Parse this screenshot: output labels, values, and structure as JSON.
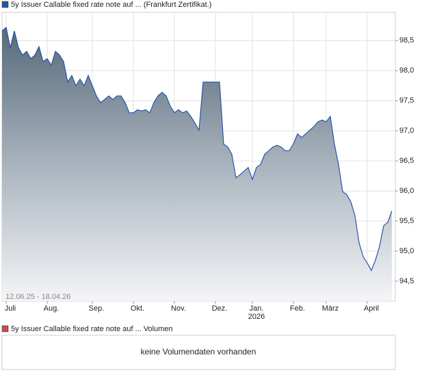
{
  "chart_data": {
    "type": "area",
    "date_range": "12.06.25 - 18.04.26",
    "categories": [
      null,
      "Juli",
      null,
      null,
      null,
      null,
      null,
      null,
      null,
      null,
      null,
      "Aug.",
      null,
      null,
      null,
      null,
      null,
      null,
      null,
      null,
      null,
      null,
      "Sep.",
      null,
      null,
      null,
      null,
      null,
      null,
      null,
      null,
      null,
      "Okt.",
      null,
      null,
      null,
      null,
      null,
      null,
      null,
      null,
      null,
      "Nov.",
      null,
      null,
      null,
      null,
      null,
      null,
      null,
      null,
      null,
      "Dez.",
      null,
      null,
      null,
      null,
      null,
      null,
      null,
      null,
      "Jan.",
      null,
      null,
      null,
      null,
      null,
      null,
      null,
      null,
      null,
      "Feb.",
      null,
      null,
      null,
      null,
      null,
      null,
      null,
      "März",
      null,
      null,
      null,
      null,
      null,
      null,
      null,
      null,
      null,
      "April",
      null,
      null,
      null,
      null,
      null,
      null
    ],
    "year_label": "2026",
    "series": [
      {
        "name": "5y Issuer Callable fixed rate note auf ... (Frankfurt Zertifikat.)",
        "color": "#2655a8",
        "values": [
          98.66,
          98.72,
          98.38,
          98.66,
          98.38,
          98.26,
          98.32,
          98.2,
          98.26,
          98.4,
          98.15,
          98.2,
          98.09,
          98.32,
          98.26,
          98.15,
          97.81,
          97.92,
          97.75,
          97.86,
          97.75,
          97.92,
          97.75,
          97.58,
          97.47,
          97.52,
          97.58,
          97.52,
          97.58,
          97.58,
          97.47,
          97.3,
          97.3,
          97.35,
          97.33,
          97.35,
          97.3,
          97.47,
          97.58,
          97.64,
          97.58,
          97.41,
          97.3,
          97.35,
          97.3,
          97.33,
          97.24,
          97.13,
          97.01,
          97.81,
          97.81,
          97.81,
          97.81,
          97.81,
          96.78,
          96.73,
          96.61,
          96.22,
          96.27,
          96.33,
          96.39,
          96.19,
          96.39,
          96.44,
          96.61,
          96.67,
          96.73,
          96.76,
          96.73,
          96.67,
          96.67,
          96.78,
          96.95,
          96.89,
          96.95,
          97.01,
          97.07,
          97.15,
          97.18,
          97.15,
          97.24,
          96.78,
          96.44,
          95.99,
          95.94,
          95.82,
          95.59,
          95.14,
          94.91,
          94.8,
          94.68,
          94.85,
          95.08,
          95.42,
          95.48,
          95.67
        ]
      }
    ],
    "ylim": [
      94.17,
      98.97
    ],
    "yticks": [
      {
        "value": 94.5,
        "label": "94,5"
      },
      {
        "value": 95,
        "label": "95,0"
      },
      {
        "value": 95.5,
        "label": "95,5"
      },
      {
        "value": 96,
        "label": "96,0"
      },
      {
        "value": 96.5,
        "label": "96,5"
      },
      {
        "value": 97,
        "label": "97,0"
      },
      {
        "value": 97.5,
        "label": "97,5"
      },
      {
        "value": 98,
        "label": "98,0"
      },
      {
        "value": 98.5,
        "label": "98,5"
      }
    ],
    "grid": true,
    "volume_panel": {
      "title": "5y Issuer Callable fixed rate note auf ... Volumen",
      "message": "keine Volumendaten vorhanden",
      "color": "#c0504d"
    }
  }
}
